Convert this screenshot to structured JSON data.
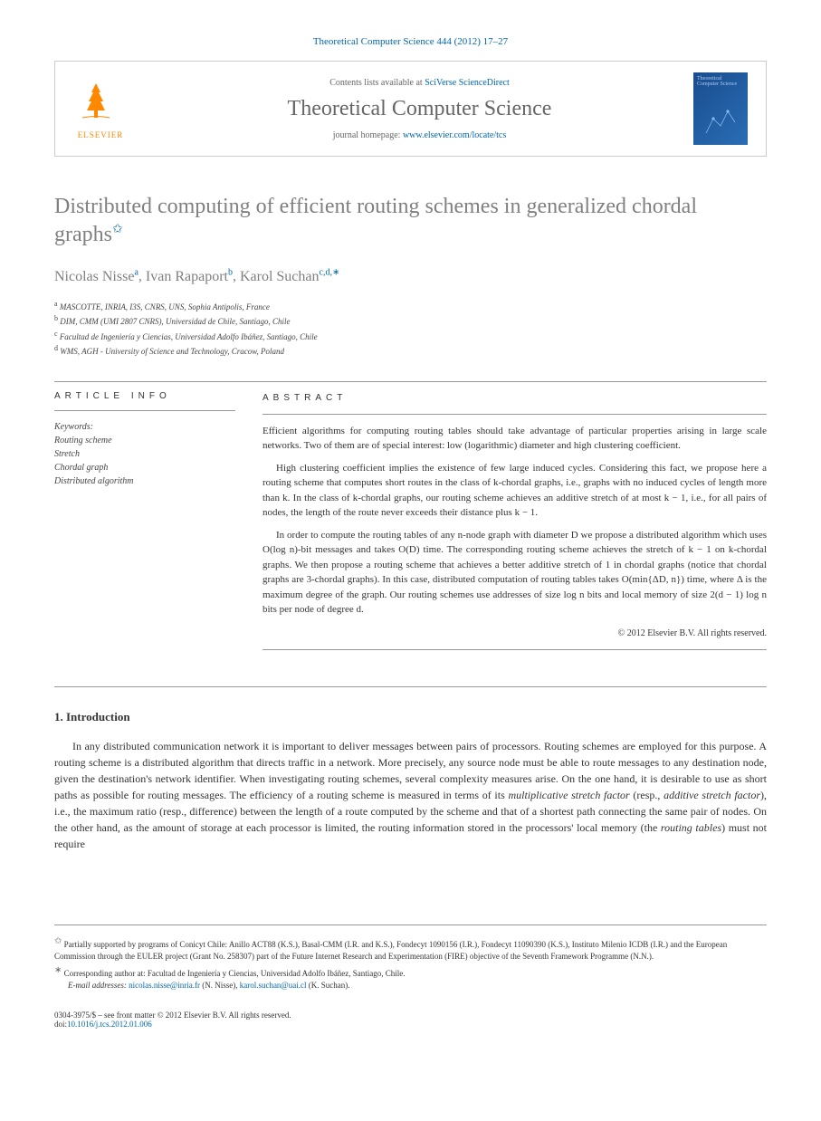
{
  "journal_ref": "Theoretical Computer Science 444 (2012) 17–27",
  "header": {
    "contents_text": "Contents lists available at ",
    "contents_link": "SciVerse ScienceDirect",
    "journal_name": "Theoretical Computer Science",
    "homepage_text": "journal homepage: ",
    "homepage_link": "www.elsevier.com/locate/tcs",
    "elsevier_label": "ELSEVIER",
    "thumb_label": "Theoretical Computer Science"
  },
  "title": "Distributed computing of efficient routing schemes in generalized chordal graphs",
  "authors": [
    {
      "name": "Nicolas Nisse",
      "sup": "a"
    },
    {
      "name": "Ivan Rapaport",
      "sup": "b"
    },
    {
      "name": "Karol Suchan",
      "sup": "c,d,∗"
    }
  ],
  "affiliations": [
    {
      "sup": "a",
      "text": "MASCOTTE, INRIA, I3S, CNRS, UNS, Sophia Antipolis, France"
    },
    {
      "sup": "b",
      "text": "DIM, CMM (UMI 2807 CNRS), Universidad de Chile, Santiago, Chile"
    },
    {
      "sup": "c",
      "text": "Facultad de Ingeniería y Ciencias, Universidad Adolfo Ibáñez, Santiago, Chile"
    },
    {
      "sup": "d",
      "text": "WMS, AGH - University of Science and Technology, Cracow, Poland"
    }
  ],
  "info_header": "ARTICLE INFO",
  "abstract_header": "ABSTRACT",
  "keywords_label": "Keywords:",
  "keywords": [
    "Routing scheme",
    "Stretch",
    "Chordal graph",
    "Distributed algorithm"
  ],
  "abstract_paras": [
    "Efficient algorithms for computing routing tables should take advantage of particular properties arising in large scale networks. Two of them are of special interest: low (logarithmic) diameter and high clustering coefficient.",
    "High clustering coefficient implies the existence of few large induced cycles. Considering this fact, we propose here a routing scheme that computes short routes in the class of k-chordal graphs, i.e., graphs with no induced cycles of length more than k. In the class of k-chordal graphs, our routing scheme achieves an additive stretch of at most k − 1, i.e., for all pairs of nodes, the length of the route never exceeds their distance plus k − 1.",
    "In order to compute the routing tables of any n-node graph with diameter D we propose a distributed algorithm which uses O(log n)-bit messages and takes O(D) time. The corresponding routing scheme achieves the stretch of k − 1 on k-chordal graphs. We then propose a routing scheme that achieves a better additive stretch of 1 in chordal graphs (notice that chordal graphs are 3-chordal graphs). In this case, distributed computation of routing tables takes O(min{ΔD, n}) time, where Δ is the maximum degree of the graph. Our routing schemes use addresses of size log n bits and local memory of size 2(d − 1) log n bits per node of degree d."
  ],
  "copyright": "© 2012 Elsevier B.V. All rights reserved.",
  "intro_header": "1. Introduction",
  "intro_text": "In any distributed communication network it is important to deliver messages between pairs of processors. Routing schemes are employed for this purpose. A routing scheme is a distributed algorithm that directs traffic in a network. More precisely, any source node must be able to route messages to any destination node, given the destination's network identifier. When investigating routing schemes, several complexity measures arise. On the one hand, it is desirable to use as short paths as possible for routing messages. The efficiency of a routing scheme is measured in terms of its multiplicative stretch factor (resp., additive stretch factor), i.e., the maximum ratio (resp., difference) between the length of a route computed by the scheme and that of a shortest path connecting the same pair of nodes. On the other hand, as the amount of storage at each processor is limited, the routing information stored in the processors' local memory (the routing tables) must not require",
  "footnotes": {
    "funding": "Partially supported by programs of Conicyt Chile: Anillo ACT88 (K.S.), Basal-CMM (I.R. and K.S.), Fondecyt 1090156 (I.R.), Fondecyt 11090390 (K.S.), Instituto Milenio ICDB (I.R.) and the European Commission through the EULER project (Grant No. 258307) part of the Future Internet Research and Experimentation (FIRE) objective of the Seventh Framework Programme (N.N.).",
    "corresponding": "Corresponding author at: Facultad de Ingeniería y Ciencias, Universidad Adolfo Ibáñez, Santiago, Chile.",
    "email_label": "E-mail addresses: ",
    "emails": [
      {
        "addr": "nicolas.nisse@inria.fr",
        "who": "(N. Nisse)"
      },
      {
        "addr": "karol.suchan@uai.cl",
        "who": "(K. Suchan)"
      }
    ]
  },
  "bottom": {
    "issn": "0304-3975/$ – see front matter © 2012 Elsevier B.V. All rights reserved.",
    "doi_label": "doi:",
    "doi": "10.1016/j.tcs.2012.01.006"
  },
  "colors": {
    "link": "#0066aa",
    "heading_gray": "#808080",
    "text": "#333333",
    "orange": "#ff8800"
  }
}
